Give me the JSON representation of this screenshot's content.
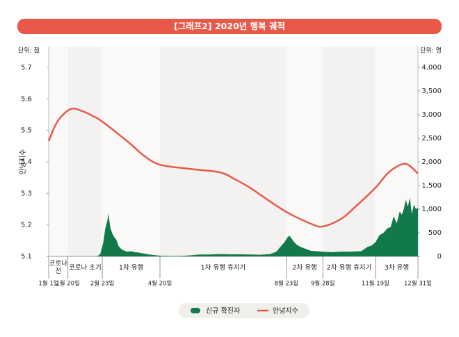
{
  "chart_data": {
    "type": "line",
    "title": "[그래프2] 2020년 행복 궤적",
    "y_unit": "단위: 점",
    "y2_unit": "단위: 명",
    "ylabel": "안녕지수",
    "xlim": [
      1,
      366
    ],
    "xticks": [
      {
        "value": 1,
        "label": "1월 1일"
      },
      {
        "value": 20,
        "label": "1월 20일"
      },
      {
        "value": 54,
        "label": "2월 23일"
      },
      {
        "value": 111,
        "label": "4월 20일"
      },
      {
        "value": 236,
        "label": "8월 23일"
      },
      {
        "value": 272,
        "label": "9월 28일"
      },
      {
        "value": 324,
        "label": "11월 19일"
      },
      {
        "value": 366,
        "label": "12월 31일"
      }
    ],
    "periods": [
      "코로나 전",
      "코로나 초기",
      "1차 유행",
      "1차 유행 휴지기",
      "2차 유행",
      "2차 유행 휴지기",
      "3차 유행"
    ],
    "ylim": [
      5.1,
      5.7
    ],
    "yticks": [
      5.1,
      5.2,
      5.3,
      5.4,
      5.5,
      5.6,
      5.7
    ],
    "y2lim": [
      0,
      4000
    ],
    "y2ticks": [
      0,
      500,
      {
        "value": 1000,
        "label": "1,000"
      },
      {
        "value": 1500,
        "label": "1,500"
      },
      {
        "value": 2000,
        "label": "2,000"
      },
      {
        "value": 2500,
        "label": "2,500"
      },
      {
        "value": 3000,
        "label": "3,000"
      },
      {
        "value": 3500,
        "label": "3,500"
      },
      {
        "value": 4000,
        "label": "4,000"
      }
    ],
    "series": [
      {
        "name": "신규 확진자",
        "color": "#127a4a",
        "type": "area",
        "axis": "y2",
        "x": [
          1,
          20,
          40,
          49,
          52,
          55,
          57,
          59,
          60,
          62,
          64,
          66,
          68,
          70,
          73,
          76,
          79,
          82,
          86,
          90,
          95,
          100,
          105,
          111,
          120,
          130,
          140,
          150,
          160,
          170,
          180,
          190,
          200,
          210,
          220,
          226,
          230,
          234,
          237,
          239,
          241,
          243,
          246,
          250,
          255,
          260,
          266,
          272,
          280,
          290,
          300,
          310,
          316,
          320,
          324,
          328,
          332,
          336,
          339,
          342,
          345,
          348,
          350,
          352,
          354,
          356,
          358,
          360,
          362,
          364,
          366
        ],
        "values": [
          0,
          0,
          0,
          2,
          50,
          300,
          600,
          750,
          909,
          600,
          480,
          400,
          350,
          220,
          150,
          120,
          100,
          110,
          90,
          80,
          60,
          40,
          30,
          15,
          10,
          10,
          20,
          40,
          40,
          50,
          45,
          45,
          40,
          35,
          50,
          100,
          200,
          300,
          400,
          440,
          380,
          320,
          250,
          200,
          160,
          120,
          110,
          100,
          90,
          100,
          100,
          110,
          200,
          230,
          300,
          450,
          500,
          600,
          620,
          850,
          700,
          950,
          880,
          1000,
          1200,
          1050,
          1240,
          900,
          1100,
          1000,
          1030
        ]
      },
      {
        "name": "안녕지수",
        "color": "#e8594a",
        "type": "line",
        "x": [
          1,
          10,
          23,
          35,
          45,
          54,
          80,
          95,
          111,
          140,
          170,
          185,
          200,
          215,
          236,
          260,
          272,
          290,
          305,
          324,
          335,
          345,
          355,
          366
        ],
        "values": [
          5.466,
          5.53,
          5.568,
          5.56,
          5.545,
          5.528,
          5.462,
          5.42,
          5.391,
          5.378,
          5.367,
          5.345,
          5.318,
          5.285,
          5.241,
          5.204,
          5.195,
          5.219,
          5.26,
          5.318,
          5.36,
          5.385,
          5.393,
          5.363
        ]
      }
    ],
    "legend": "bottom"
  }
}
